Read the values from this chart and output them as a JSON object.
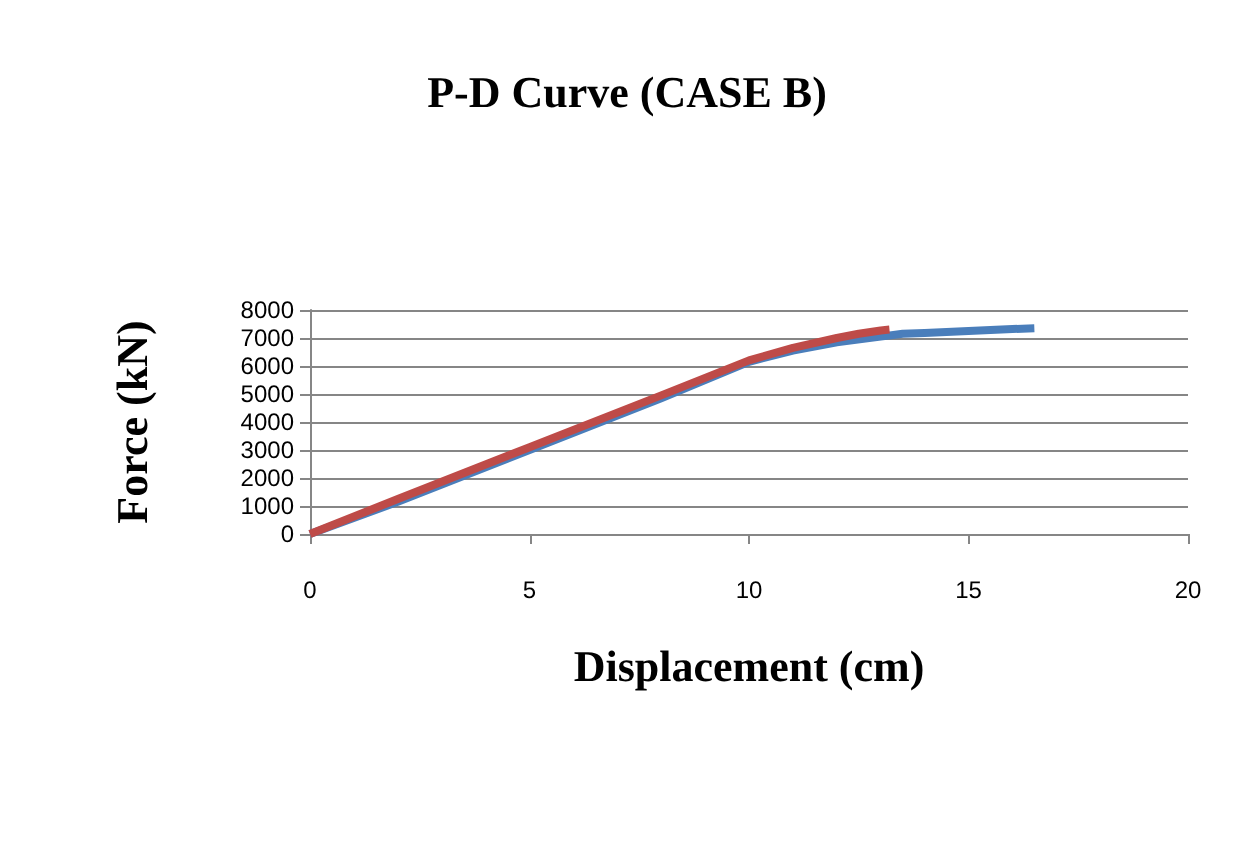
{
  "chart_data": {
    "type": "line",
    "title": "P-D Curve (CASE B)",
    "xlabel": "Displacement (cm)",
    "ylabel": "Force (kN)",
    "xlim": [
      0,
      20
    ],
    "xticks": [
      0,
      5,
      10,
      15,
      20
    ],
    "ylim": [
      0,
      8000
    ],
    "yticks": [
      0,
      1000,
      2000,
      3000,
      4000,
      5000,
      6000,
      7000,
      8000
    ],
    "grid": "y",
    "marker": "none",
    "series": [
      {
        "color": "#4a7ebb",
        "x": [
          0,
          2,
          5,
          8,
          10,
          11,
          12,
          13,
          13.5,
          14,
          15,
          16,
          16.5
        ],
        "values": [
          0,
          1150,
          3000,
          4850,
          6150,
          6550,
          6850,
          7050,
          7150,
          7180,
          7250,
          7320,
          7350
        ]
      },
      {
        "color": "#be4b48",
        "x": [
          0,
          2,
          5,
          8,
          10,
          11,
          12,
          12.5,
          13,
          13.2
        ],
        "values": [
          0,
          1250,
          3100,
          4950,
          6200,
          6650,
          7000,
          7150,
          7270,
          7300
        ]
      }
    ]
  }
}
